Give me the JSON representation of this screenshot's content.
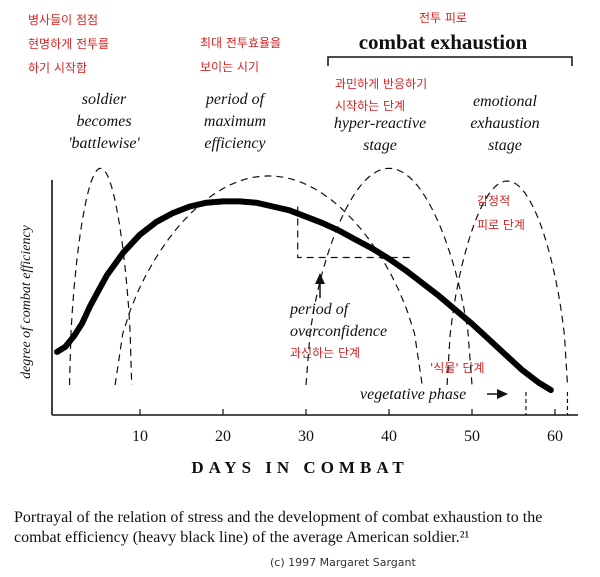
{
  "chart_data": {
    "type": "line",
    "title": "combat exhaustion",
    "title_ko": "전투 피로",
    "xlabel": "DAYS IN COMBAT",
    "ylabel": "degree of combat efficiency",
    "xlim": [
      0,
      62
    ],
    "x_ticks": [
      10,
      20,
      30,
      40,
      50,
      60
    ],
    "series": [
      {
        "name": "combat efficiency",
        "style": "heavy solid",
        "x": [
          0,
          1,
          2,
          3,
          4,
          5,
          6,
          8,
          10,
          12,
          14,
          16,
          18,
          20,
          22,
          24,
          26,
          28,
          30,
          32,
          34,
          36,
          38,
          40,
          42,
          44,
          46,
          48,
          50,
          52,
          54,
          56,
          58,
          59.5
        ],
        "y": [
          0.13,
          0.15,
          0.19,
          0.24,
          0.31,
          0.37,
          0.43,
          0.52,
          0.59,
          0.64,
          0.675,
          0.7,
          0.715,
          0.72,
          0.72,
          0.715,
          0.7,
          0.685,
          0.66,
          0.635,
          0.605,
          0.57,
          0.535,
          0.495,
          0.45,
          0.4,
          0.35,
          0.295,
          0.24,
          0.18,
          0.12,
          0.06,
          0.01,
          -0.02
        ]
      }
    ],
    "phases": [
      {
        "name": "soldier becomes 'battlewise'",
        "name_ko": "병사들이 점점 현명하게 전투를 하기 시작함",
        "x_range": [
          1.5,
          9
        ],
        "peak": 0.85
      },
      {
        "name": "period of maximum efficiency",
        "name_ko": "최대 전투효율을 보이는 시기",
        "x_range": [
          7,
          44
        ],
        "peak": 0.82
      },
      {
        "name": "hyper-reactive stage",
        "name_ko": "과민하게 반응하기 시작하는 단계",
        "x_range": [
          30,
          50
        ],
        "peak": 0.85
      },
      {
        "name": "emotional exhaustion stage",
        "name_ko": "감정적 피로 단계",
        "x_range": [
          47,
          61.5
        ],
        "peak": 0.8
      },
      {
        "name": "period of overconfidence",
        "name_ko": "과신하는 단계",
        "x_range": [
          29,
          43
        ],
        "level": 0.5
      },
      {
        "name": "vegetative phase",
        "name_ko": "'식물' 단계",
        "x_range": [
          56.5,
          61.5
        ]
      }
    ]
  },
  "labels": {
    "battlewise_en": [
      "soldier",
      "becomes",
      "'battlewise'"
    ],
    "battlewise_ko": [
      "병사들이 점점",
      "현명하게 전투를",
      "하기 시작함"
    ],
    "maxeff_en": [
      "period of",
      "maximum",
      "efficiency"
    ],
    "maxeff_ko": [
      "최대 전투효율을",
      "보이는 시기"
    ],
    "hyper_en": [
      "hyper-reactive",
      "stage"
    ],
    "hyper_ko": [
      "과민하게 반응하기",
      "시작하는 단계"
    ],
    "emotional_en": [
      "emotional",
      "exhaustion",
      "stage"
    ],
    "emotional_ko": [
      "감정적",
      "피로 단계"
    ],
    "overconf_en": [
      "period of",
      "overconfidence"
    ],
    "overconf_ko": "과신하는 단계",
    "vegetative_en": "vegetative phase",
    "vegetative_ko": "'식물' 단계"
  },
  "caption": "Portrayal of the relation of stress and the development of combat exhaustion to the combat efficiency (heavy black line) of the average American soldier.²¹",
  "copyright": "(c)  1997 Margaret Sargant"
}
